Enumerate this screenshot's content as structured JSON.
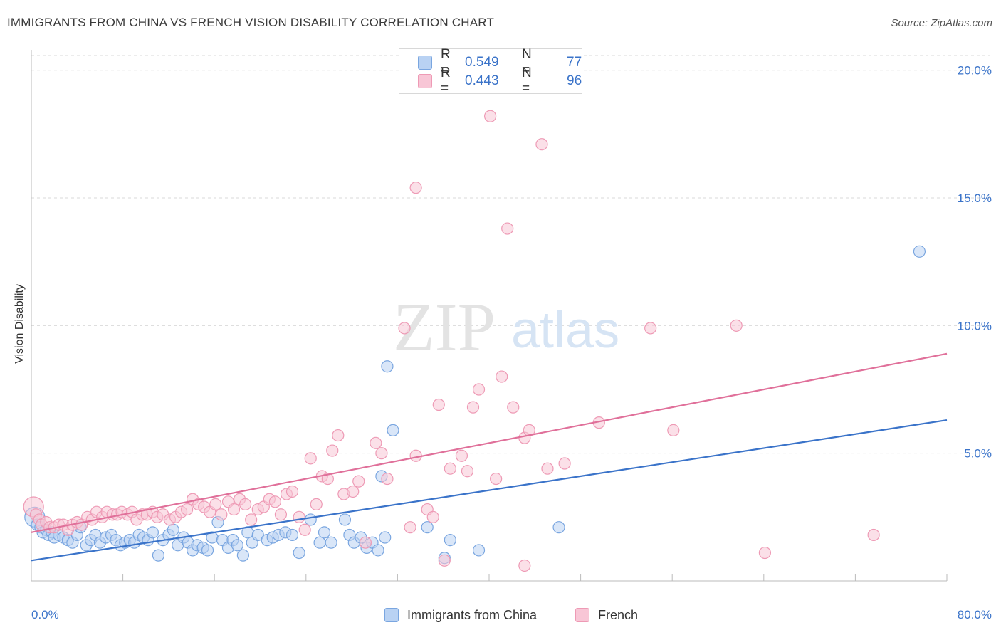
{
  "title": "IMMIGRANTS FROM CHINA VS FRENCH VISION DISABILITY CORRELATION CHART",
  "source": "Source: ZipAtlas.com",
  "legend": {
    "r_label": "R =",
    "n_label": "N =",
    "blue": {
      "r": "0.549",
      "n": "77"
    },
    "pink": {
      "r": "0.443",
      "n": "96"
    }
  },
  "watermark": {
    "zip": "ZIP",
    "atlas": "atlas"
  },
  "colors": {
    "blue_fill": "#b9d2f3",
    "blue_stroke": "#7aa6e0",
    "blue_line": "#3a73c9",
    "pink_fill": "#f8c6d6",
    "pink_stroke": "#ee9ab5",
    "pink_line": "#e0709a",
    "tick_label": "#3a73c9",
    "grid": "#d9d9d9"
  },
  "chart_data": {
    "type": "scatter",
    "title": "IMMIGRANTS FROM CHINA VS FRENCH VISION DISABILITY CORRELATION CHART",
    "xlabel": "",
    "ylabel": "Vision Disability",
    "xlim": [
      0,
      80
    ],
    "ylim": [
      0,
      20.8
    ],
    "x_tick_labels": [
      "0.0%",
      "80.0%"
    ],
    "y_ticks": [
      5,
      10,
      15,
      20
    ],
    "y_tick_labels": [
      "5.0%",
      "10.0%",
      "15.0%",
      "20.0%"
    ],
    "grid": true,
    "legend_position": "top-center",
    "series": [
      {
        "name": "Immigrants from China",
        "color": "#b9d2f3",
        "trend": {
          "x": [
            0,
            80
          ],
          "y": [
            0.8,
            6.3
          ]
        },
        "points": [
          [
            0.3,
            2.5
          ],
          [
            0.5,
            2.2
          ],
          [
            0.8,
            2.1
          ],
          [
            1.0,
            1.9
          ],
          [
            1.3,
            2.0
          ],
          [
            1.5,
            1.8
          ],
          [
            1.8,
            1.9
          ],
          [
            2.0,
            1.7
          ],
          [
            2.4,
            1.8
          ],
          [
            2.8,
            1.7
          ],
          [
            3.2,
            1.6
          ],
          [
            3.6,
            1.5
          ],
          [
            4.0,
            1.8
          ],
          [
            4.3,
            2.1
          ],
          [
            4.8,
            1.4
          ],
          [
            5.2,
            1.6
          ],
          [
            5.6,
            1.8
          ],
          [
            6.0,
            1.5
          ],
          [
            6.5,
            1.7
          ],
          [
            7.0,
            1.8
          ],
          [
            7.4,
            1.6
          ],
          [
            7.8,
            1.4
          ],
          [
            8.2,
            1.5
          ],
          [
            8.6,
            1.6
          ],
          [
            9.0,
            1.5
          ],
          [
            9.4,
            1.8
          ],
          [
            9.8,
            1.7
          ],
          [
            10.2,
            1.6
          ],
          [
            10.6,
            1.9
          ],
          [
            11.1,
            1.0
          ],
          [
            11.5,
            1.6
          ],
          [
            12.0,
            1.8
          ],
          [
            12.4,
            2.0
          ],
          [
            12.8,
            1.4
          ],
          [
            13.3,
            1.7
          ],
          [
            13.7,
            1.5
          ],
          [
            14.1,
            1.2
          ],
          [
            14.5,
            1.4
          ],
          [
            15.0,
            1.3
          ],
          [
            15.4,
            1.2
          ],
          [
            15.8,
            1.7
          ],
          [
            16.3,
            2.3
          ],
          [
            16.7,
            1.6
          ],
          [
            17.2,
            1.3
          ],
          [
            17.6,
            1.6
          ],
          [
            18.0,
            1.4
          ],
          [
            18.5,
            1.0
          ],
          [
            18.9,
            1.9
          ],
          [
            19.3,
            1.5
          ],
          [
            19.8,
            1.8
          ],
          [
            20.6,
            1.6
          ],
          [
            21.1,
            1.7
          ],
          [
            21.6,
            1.8
          ],
          [
            22.2,
            1.9
          ],
          [
            22.8,
            1.8
          ],
          [
            23.4,
            1.1
          ],
          [
            24.4,
            2.4
          ],
          [
            25.2,
            1.5
          ],
          [
            25.6,
            1.9
          ],
          [
            26.2,
            1.5
          ],
          [
            27.4,
            2.4
          ],
          [
            27.8,
            1.8
          ],
          [
            28.2,
            1.5
          ],
          [
            28.8,
            1.7
          ],
          [
            29.3,
            1.3
          ],
          [
            29.8,
            1.5
          ],
          [
            30.3,
            1.2
          ],
          [
            30.9,
            1.7
          ],
          [
            30.6,
            4.1
          ],
          [
            31.6,
            5.9
          ],
          [
            31.1,
            8.4
          ],
          [
            34.6,
            2.1
          ],
          [
            36.1,
            0.9
          ],
          [
            36.6,
            1.6
          ],
          [
            39.1,
            1.2
          ],
          [
            46.1,
            2.1
          ],
          [
            77.6,
            12.9
          ]
        ]
      },
      {
        "name": "French",
        "color": "#f8c6d6",
        "trend": {
          "x": [
            0,
            80
          ],
          "y": [
            1.9,
            8.9
          ]
        },
        "points": [
          [
            0.2,
            2.9
          ],
          [
            0.4,
            2.6
          ],
          [
            0.7,
            2.4
          ],
          [
            0.9,
            2.2
          ],
          [
            1.3,
            2.3
          ],
          [
            1.6,
            2.1
          ],
          [
            2.0,
            2.1
          ],
          [
            2.4,
            2.2
          ],
          [
            2.8,
            2.2
          ],
          [
            3.2,
            2.0
          ],
          [
            3.6,
            2.2
          ],
          [
            4.0,
            2.3
          ],
          [
            4.4,
            2.2
          ],
          [
            4.9,
            2.5
          ],
          [
            5.3,
            2.4
          ],
          [
            5.7,
            2.7
          ],
          [
            6.2,
            2.5
          ],
          [
            6.6,
            2.7
          ],
          [
            7.1,
            2.6
          ],
          [
            7.5,
            2.6
          ],
          [
            7.9,
            2.7
          ],
          [
            8.4,
            2.6
          ],
          [
            8.8,
            2.7
          ],
          [
            9.2,
            2.4
          ],
          [
            9.7,
            2.6
          ],
          [
            10.1,
            2.6
          ],
          [
            10.6,
            2.7
          ],
          [
            11.0,
            2.5
          ],
          [
            11.5,
            2.6
          ],
          [
            12.1,
            2.4
          ],
          [
            12.6,
            2.5
          ],
          [
            13.1,
            2.7
          ],
          [
            13.6,
            2.8
          ],
          [
            14.1,
            3.2
          ],
          [
            14.6,
            3.0
          ],
          [
            15.1,
            2.9
          ],
          [
            15.6,
            2.7
          ],
          [
            16.1,
            3.0
          ],
          [
            16.6,
            2.6
          ],
          [
            17.2,
            3.1
          ],
          [
            17.7,
            2.8
          ],
          [
            18.2,
            3.2
          ],
          [
            18.7,
            3.0
          ],
          [
            19.2,
            2.4
          ],
          [
            19.8,
            2.8
          ],
          [
            20.3,
            2.9
          ],
          [
            20.8,
            3.2
          ],
          [
            21.3,
            3.1
          ],
          [
            21.8,
            2.6
          ],
          [
            22.3,
            3.4
          ],
          [
            22.8,
            3.5
          ],
          [
            23.4,
            2.5
          ],
          [
            23.9,
            2.0
          ],
          [
            24.4,
            4.8
          ],
          [
            24.9,
            3.0
          ],
          [
            25.4,
            4.1
          ],
          [
            25.9,
            4.0
          ],
          [
            26.3,
            5.1
          ],
          [
            26.8,
            5.7
          ],
          [
            27.3,
            3.4
          ],
          [
            28.1,
            3.5
          ],
          [
            28.6,
            3.9
          ],
          [
            29.2,
            1.5
          ],
          [
            30.1,
            5.4
          ],
          [
            30.6,
            5.0
          ],
          [
            31.1,
            4.0
          ],
          [
            32.6,
            9.9
          ],
          [
            33.1,
            2.1
          ],
          [
            33.6,
            4.9
          ],
          [
            34.6,
            2.8
          ],
          [
            35.1,
            2.5
          ],
          [
            35.6,
            6.9
          ],
          [
            36.6,
            4.4
          ],
          [
            37.6,
            4.9
          ],
          [
            38.1,
            4.3
          ],
          [
            38.6,
            6.8
          ],
          [
            39.1,
            7.5
          ],
          [
            40.6,
            4.0
          ],
          [
            41.1,
            8.0
          ],
          [
            42.1,
            6.8
          ],
          [
            43.1,
            5.6
          ],
          [
            43.5,
            5.9
          ],
          [
            45.1,
            4.4
          ],
          [
            46.6,
            4.6
          ],
          [
            49.6,
            6.2
          ],
          [
            54.1,
            9.9
          ],
          [
            36.1,
            0.8
          ],
          [
            33.6,
            15.4
          ],
          [
            40.1,
            18.2
          ],
          [
            44.6,
            17.1
          ],
          [
            41.6,
            13.8
          ],
          [
            56.1,
            5.9
          ],
          [
            61.6,
            10.0
          ],
          [
            64.1,
            1.1
          ],
          [
            73.6,
            1.8
          ],
          [
            43.1,
            0.6
          ]
        ]
      }
    ]
  },
  "bottom_legend": {
    "blue_label": "Immigrants from China",
    "pink_label": "French"
  }
}
